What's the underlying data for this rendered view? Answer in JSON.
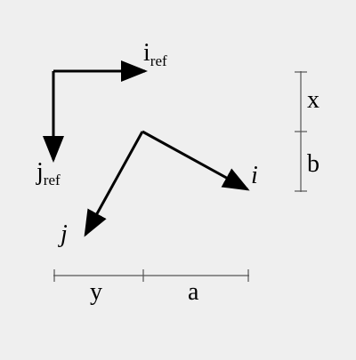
{
  "labels": {
    "i_ref_base": "i",
    "i_ref_sub": "ref",
    "j_ref_base": "j",
    "j_ref_sub": "ref",
    "i": "i",
    "j": "j",
    "x": "x",
    "b": "b",
    "y": "y",
    "a": "a"
  },
  "colors": {
    "background": "#efefef",
    "vectors": "#000000",
    "dimension_lines": "#555555"
  }
}
